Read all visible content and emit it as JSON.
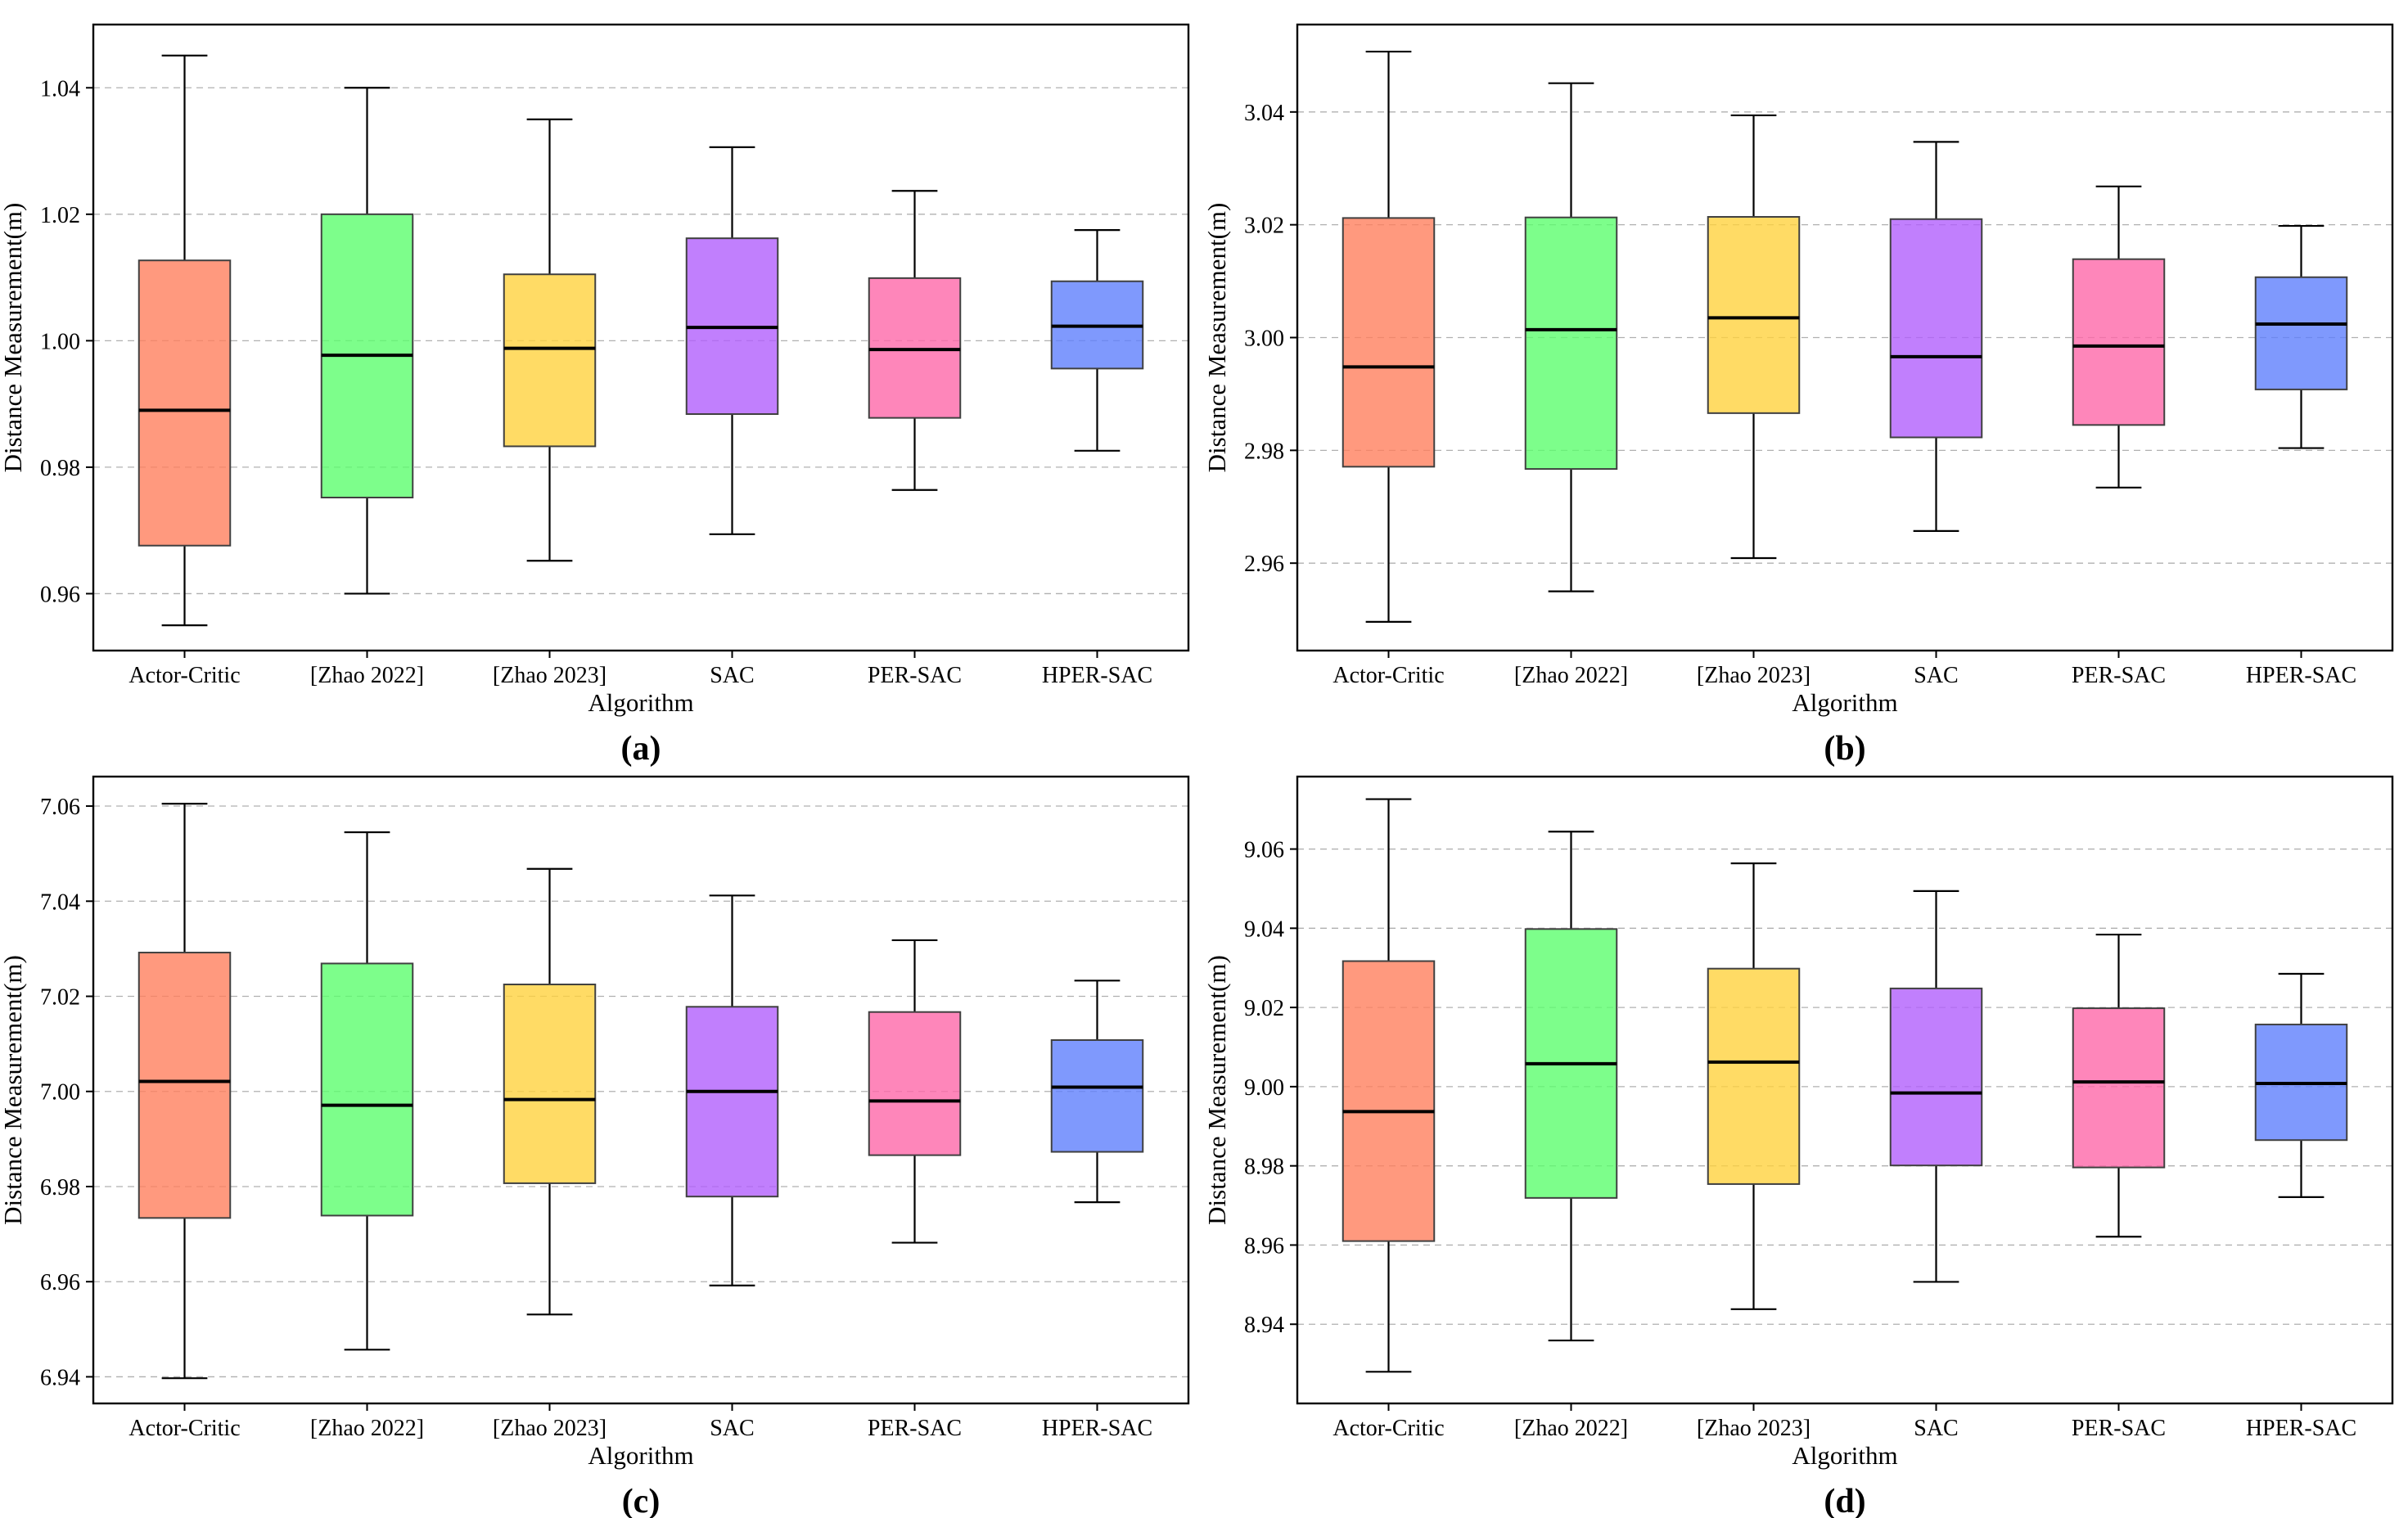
{
  "chart_data": [
    {
      "type": "box",
      "panel_label": "(a)",
      "xlabel": "Algorithm",
      "ylabel": "Distance Measurement(m)",
      "ylim": [
        0.951,
        1.05
      ],
      "yticks": [
        "0.96",
        "0.98",
        "1.00",
        "1.02",
        "1.04"
      ],
      "grid": "horizontal dashed",
      "categories": [
        "Actor-Critic",
        "[Zhao 2022]",
        "[Zhao 2023]",
        "SAC",
        "PER-SAC",
        "HPER-SAC"
      ],
      "series": [
        {
          "name": "Actor-Critic",
          "min": 0.955,
          "q1": 0.9676,
          "median": 0.989,
          "q3": 1.0127,
          "max": 1.0451
        },
        {
          "name": "[Zhao 2022]",
          "min": 0.96,
          "q1": 0.9752,
          "median": 0.9977,
          "q3": 1.02,
          "max": 1.04
        },
        {
          "name": "[Zhao 2023]",
          "min": 0.9652,
          "q1": 0.9833,
          "median": 0.9988,
          "q3": 1.0105,
          "max": 1.035
        },
        {
          "name": "SAC",
          "min": 0.9694,
          "q1": 0.9884,
          "median": 1.0021,
          "q3": 1.0162,
          "max": 1.0306
        },
        {
          "name": "PER-SAC",
          "min": 0.9764,
          "q1": 0.9878,
          "median": 0.9986,
          "q3": 1.0099,
          "max": 1.0237
        },
        {
          "name": "HPER-SAC",
          "min": 0.9826,
          "q1": 0.9956,
          "median": 1.0023,
          "q3": 1.0094,
          "max": 1.0175
        }
      ]
    },
    {
      "type": "box",
      "panel_label": "(b)",
      "xlabel": "Algorithm",
      "ylabel": "Distance Measurement(m)",
      "ylim": [
        2.9445,
        3.0555
      ],
      "yticks": [
        "2.96",
        "2.98",
        "3.00",
        "3.02",
        "3.04"
      ],
      "grid": "horizontal dashed",
      "categories": [
        "Actor-Critic",
        "[Zhao 2022]",
        "[Zhao 2023]",
        "SAC",
        "PER-SAC",
        "HPER-SAC"
      ],
      "series": [
        {
          "name": "Actor-Critic",
          "min": 2.9496,
          "q1": 2.9771,
          "median": 2.9948,
          "q3": 3.0212,
          "max": 3.0507
        },
        {
          "name": "[Zhao 2022]",
          "min": 2.955,
          "q1": 2.9767,
          "median": 3.0014,
          "q3": 3.0213,
          "max": 3.0451
        },
        {
          "name": "[Zhao 2023]",
          "min": 2.9609,
          "q1": 2.9866,
          "median": 3.0035,
          "q3": 3.0214,
          "max": 3.0394
        },
        {
          "name": "SAC",
          "min": 2.9657,
          "q1": 2.9823,
          "median": 2.9966,
          "q3": 3.021,
          "max": 3.0347
        },
        {
          "name": "PER-SAC",
          "min": 2.9734,
          "q1": 2.9845,
          "median": 2.9985,
          "q3": 3.0139,
          "max": 3.0268
        },
        {
          "name": "HPER-SAC",
          "min": 2.9804,
          "q1": 2.9908,
          "median": 3.0024,
          "q3": 3.0107,
          "max": 3.0198
        }
      ]
    },
    {
      "type": "box",
      "panel_label": "(c)",
      "xlabel": "Algorithm",
      "ylabel": "Distance Measurement(m)",
      "ylim": [
        6.9344,
        7.0662
      ],
      "yticks": [
        "6.94",
        "6.96",
        "6.98",
        "7.00",
        "7.02",
        "7.04",
        "7.06"
      ],
      "grid": "horizontal dashed",
      "categories": [
        "Actor-Critic",
        "[Zhao 2022]",
        "[Zhao 2023]",
        "SAC",
        "PER-SAC",
        "HPER-SAC"
      ],
      "series": [
        {
          "name": "Actor-Critic",
          "min": 6.9397,
          "q1": 6.9734,
          "median": 7.0021,
          "q3": 7.0292,
          "max": 7.0605
        },
        {
          "name": "[Zhao 2022]",
          "min": 6.9457,
          "q1": 6.9739,
          "median": 6.9971,
          "q3": 7.0269,
          "max": 7.0545
        },
        {
          "name": "[Zhao 2023]",
          "min": 6.9531,
          "q1": 6.9807,
          "median": 6.9983,
          "q3": 7.0225,
          "max": 7.0468
        },
        {
          "name": "SAC",
          "min": 6.9592,
          "q1": 6.9779,
          "median": 7.0,
          "q3": 7.0178,
          "max": 7.0412
        },
        {
          "name": "PER-SAC",
          "min": 6.9682,
          "q1": 6.9866,
          "median": 6.998,
          "q3": 7.0167,
          "max": 7.0318
        },
        {
          "name": "HPER-SAC",
          "min": 6.9767,
          "q1": 6.9873,
          "median": 7.0009,
          "q3": 7.0108,
          "max": 7.0233
        }
      ]
    },
    {
      "type": "box",
      "panel_label": "(d)",
      "xlabel": "Algorithm",
      "ylabel": "Distance Measurement(m)",
      "ylim": [
        8.92,
        9.0783
      ],
      "yticks": [
        "8.94",
        "8.96",
        "8.98",
        "9.00",
        "9.02",
        "9.04",
        "9.06"
      ],
      "grid": "horizontal dashed",
      "categories": [
        "Actor-Critic",
        "[Zhao 2022]",
        "[Zhao 2023]",
        "SAC",
        "PER-SAC",
        "HPER-SAC"
      ],
      "series": [
        {
          "name": "Actor-Critic",
          "min": 8.928,
          "q1": 8.961,
          "median": 8.9937,
          "q3": 9.0317,
          "max": 9.0726
        },
        {
          "name": "[Zhao 2022]",
          "min": 8.9359,
          "q1": 8.9719,
          "median": 9.0058,
          "q3": 9.0398,
          "max": 9.0644
        },
        {
          "name": "[Zhao 2023]",
          "min": 8.9438,
          "q1": 8.9754,
          "median": 9.0062,
          "q3": 9.0298,
          "max": 9.0564
        },
        {
          "name": "SAC",
          "min": 8.9507,
          "q1": 8.9801,
          "median": 8.9984,
          "q3": 9.0248,
          "max": 9.0494
        },
        {
          "name": "PER-SAC",
          "min": 8.9621,
          "q1": 8.9796,
          "median": 9.0012,
          "q3": 9.0198,
          "max": 9.0384
        },
        {
          "name": "HPER-SAC",
          "min": 8.9721,
          "q1": 8.9865,
          "median": 9.0008,
          "q3": 9.0157,
          "max": 9.0285
        }
      ]
    }
  ],
  "colors": {
    "Actor-Critic": "#ff7f5e",
    "[Zhao 2022]": "#5cfe6e",
    "[Zhao 2023]": "#ffd23e",
    "SAC": "#b25ffd",
    "PER-SAC": "#fe68a9",
    "HPER-SAC": "#5f80fd"
  }
}
